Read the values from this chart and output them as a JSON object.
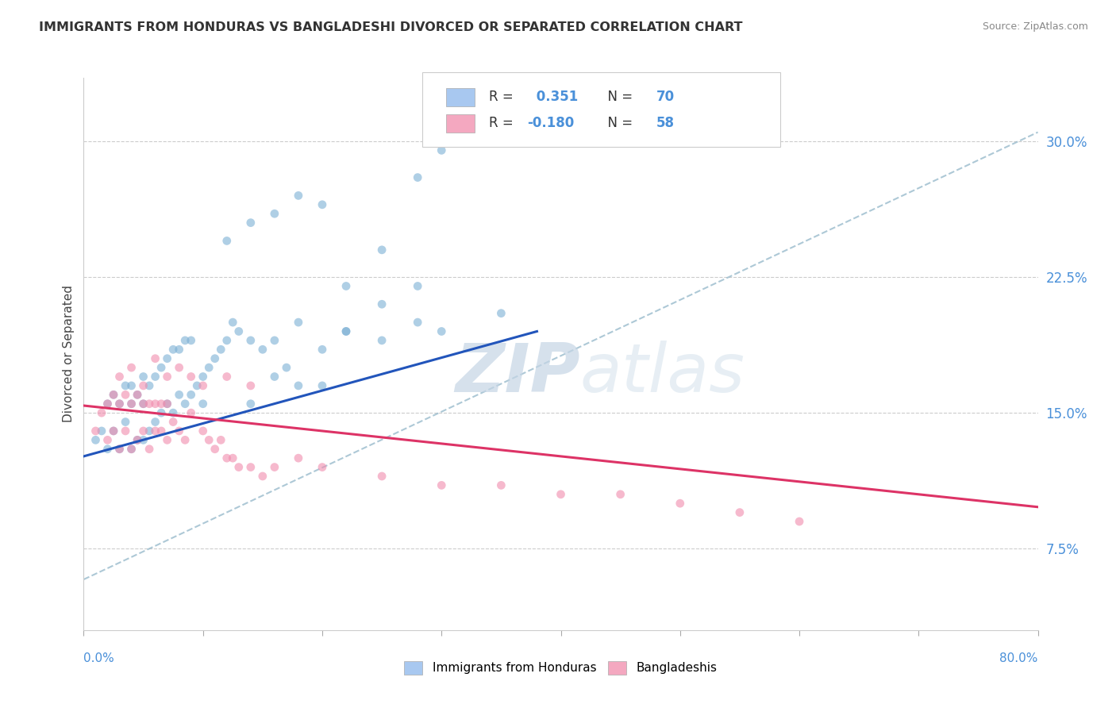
{
  "title": "IMMIGRANTS FROM HONDURAS VS BANGLADESHI DIVORCED OR SEPARATED CORRELATION CHART",
  "source": "Source: ZipAtlas.com",
  "ylabel": "Divorced or Separated",
  "right_yticks": [
    "7.5%",
    "15.0%",
    "22.5%",
    "30.0%"
  ],
  "right_ytick_vals": [
    0.075,
    0.15,
    0.225,
    0.3
  ],
  "xlim": [
    0.0,
    0.8
  ],
  "ylim": [
    0.03,
    0.335
  ],
  "legend_label1": "R =  0.351   N = 70",
  "legend_label2": "R = -0.180   N = 58",
  "legend_color1": "#a8c8f0",
  "legend_color2": "#f4a8c0",
  "dot_color1": "#7bafd4",
  "dot_color2": "#f08bad",
  "line_color1": "#2255bb",
  "line_color2": "#dd3366",
  "dashed_line_color": "#99bbcc",
  "watermark_zip": "ZIP",
  "watermark_atlas": "atlas",
  "bottom_legend1": "Immigrants from Honduras",
  "bottom_legend2": "Bangladeshis",
  "blue_scatter_x": [
    0.01,
    0.015,
    0.02,
    0.02,
    0.025,
    0.025,
    0.03,
    0.03,
    0.035,
    0.035,
    0.04,
    0.04,
    0.04,
    0.045,
    0.045,
    0.05,
    0.05,
    0.05,
    0.055,
    0.055,
    0.06,
    0.06,
    0.065,
    0.065,
    0.07,
    0.07,
    0.075,
    0.075,
    0.08,
    0.08,
    0.085,
    0.085,
    0.09,
    0.09,
    0.095,
    0.1,
    0.1,
    0.105,
    0.11,
    0.115,
    0.12,
    0.125,
    0.13,
    0.14,
    0.15,
    0.16,
    0.17,
    0.18,
    0.2,
    0.22,
    0.25,
    0.28,
    0.3,
    0.14,
    0.16,
    0.18,
    0.2,
    0.22,
    0.25,
    0.28,
    0.12,
    0.14,
    0.16,
    0.18,
    0.2,
    0.22,
    0.25,
    0.28,
    0.3,
    0.35
  ],
  "blue_scatter_y": [
    0.135,
    0.14,
    0.13,
    0.155,
    0.14,
    0.16,
    0.13,
    0.155,
    0.145,
    0.165,
    0.13,
    0.155,
    0.165,
    0.135,
    0.16,
    0.135,
    0.155,
    0.17,
    0.14,
    0.165,
    0.145,
    0.17,
    0.15,
    0.175,
    0.155,
    0.18,
    0.15,
    0.185,
    0.16,
    0.185,
    0.155,
    0.19,
    0.16,
    0.19,
    0.165,
    0.155,
    0.17,
    0.175,
    0.18,
    0.185,
    0.19,
    0.2,
    0.195,
    0.19,
    0.185,
    0.19,
    0.175,
    0.2,
    0.185,
    0.195,
    0.19,
    0.2,
    0.195,
    0.155,
    0.17,
    0.165,
    0.165,
    0.195,
    0.21,
    0.22,
    0.245,
    0.255,
    0.26,
    0.27,
    0.265,
    0.22,
    0.24,
    0.28,
    0.295,
    0.205
  ],
  "pink_scatter_x": [
    0.01,
    0.015,
    0.02,
    0.02,
    0.025,
    0.025,
    0.03,
    0.03,
    0.035,
    0.035,
    0.04,
    0.04,
    0.045,
    0.045,
    0.05,
    0.05,
    0.055,
    0.055,
    0.06,
    0.06,
    0.065,
    0.065,
    0.07,
    0.07,
    0.075,
    0.08,
    0.085,
    0.09,
    0.1,
    0.105,
    0.11,
    0.115,
    0.12,
    0.125,
    0.13,
    0.14,
    0.15,
    0.16,
    0.18,
    0.2,
    0.25,
    0.3,
    0.35,
    0.4,
    0.45,
    0.5,
    0.55,
    0.6,
    0.03,
    0.04,
    0.05,
    0.06,
    0.07,
    0.08,
    0.09,
    0.1,
    0.12,
    0.14
  ],
  "pink_scatter_y": [
    0.14,
    0.15,
    0.135,
    0.155,
    0.14,
    0.16,
    0.13,
    0.155,
    0.14,
    0.16,
    0.13,
    0.155,
    0.135,
    0.16,
    0.14,
    0.155,
    0.13,
    0.155,
    0.14,
    0.155,
    0.14,
    0.155,
    0.135,
    0.155,
    0.145,
    0.14,
    0.135,
    0.15,
    0.14,
    0.135,
    0.13,
    0.135,
    0.125,
    0.125,
    0.12,
    0.12,
    0.115,
    0.12,
    0.125,
    0.12,
    0.115,
    0.11,
    0.11,
    0.105,
    0.105,
    0.1,
    0.095,
    0.09,
    0.17,
    0.175,
    0.165,
    0.18,
    0.17,
    0.175,
    0.17,
    0.165,
    0.17,
    0.165
  ],
  "blue_line_x": [
    0.0,
    0.38
  ],
  "blue_line_y": [
    0.126,
    0.195
  ],
  "pink_line_x": [
    0.0,
    0.8
  ],
  "pink_line_y": [
    0.154,
    0.098
  ],
  "dashed_line_x": [
    0.0,
    0.8
  ],
  "dashed_line_y": [
    0.058,
    0.305
  ]
}
